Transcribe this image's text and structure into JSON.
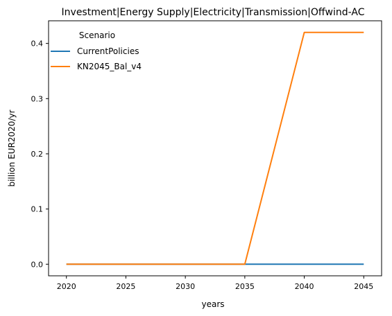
{
  "chart_data": {
    "type": "line",
    "title": "Investment|Energy Supply|Electricity|Transmission|Offwind-AC",
    "xlabel": "years",
    "ylabel": "billion EUR2020/yr",
    "x": [
      2020,
      2025,
      2030,
      2035,
      2040,
      2045
    ],
    "xlim": [
      2018.5,
      2046.5
    ],
    "ylim": [
      -0.021,
      0.441
    ],
    "xticks": [
      2020,
      2025,
      2030,
      2035,
      2040,
      2045
    ],
    "xtick_labels": [
      "2020",
      "2025",
      "2030",
      "2035",
      "2040",
      "2045"
    ],
    "yticks": [
      0.0,
      0.1,
      0.2,
      0.3,
      0.4
    ],
    "ytick_labels": [
      "0.0",
      "0.1",
      "0.2",
      "0.3",
      "0.4"
    ],
    "grid": false,
    "legend": {
      "title": "Scenario",
      "placement": "top-left"
    },
    "series": [
      {
        "name": "CurrentPolicies",
        "color": "#1f77b4",
        "values": [
          0.0,
          0.0,
          0.0,
          0.0,
          0.0,
          0.0
        ]
      },
      {
        "name": "KN2045_Bal_v4",
        "color": "#ff7f0e",
        "values": [
          0.0,
          0.0,
          0.0,
          0.0,
          0.42,
          0.42
        ]
      }
    ]
  }
}
